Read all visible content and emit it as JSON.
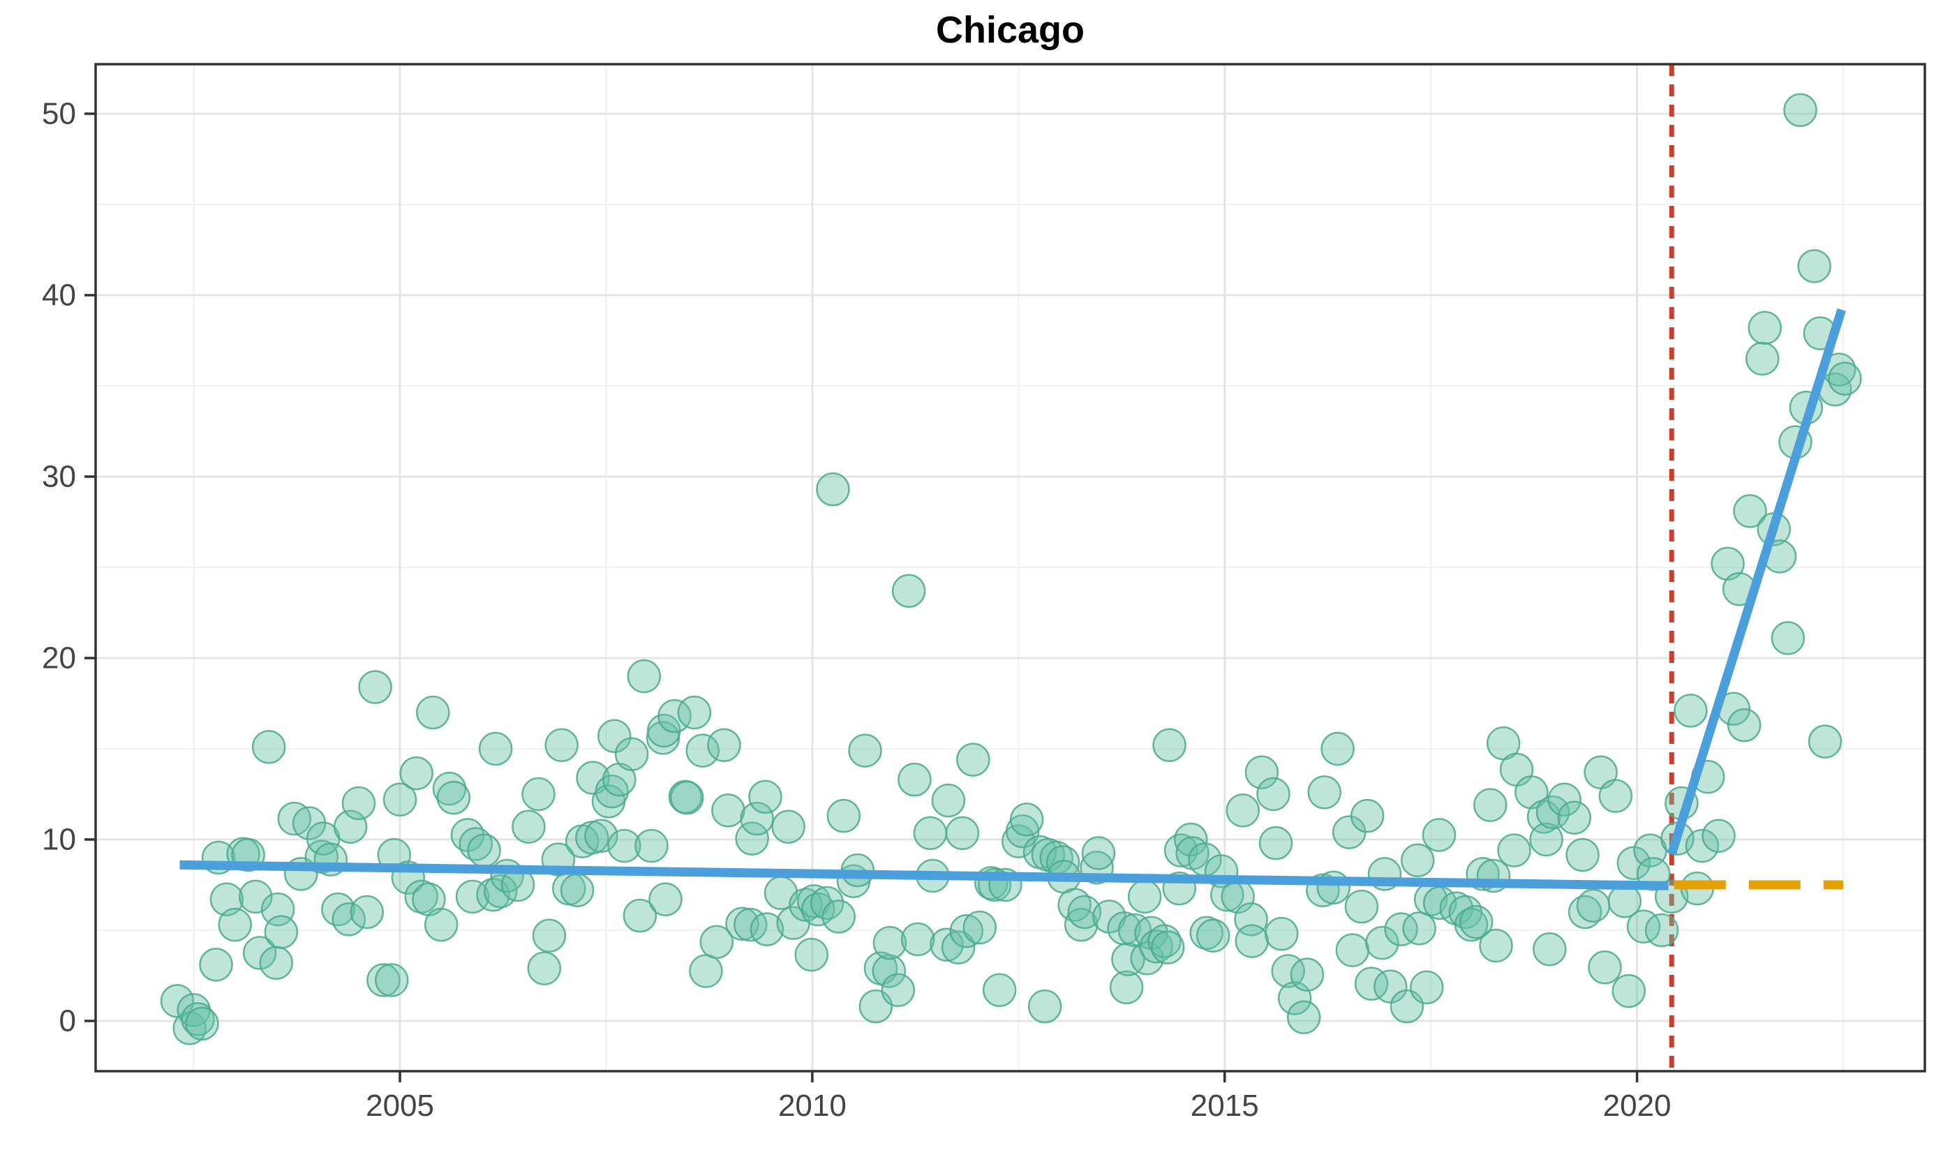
{
  "header": {
    "title": "Chicago"
  },
  "chart_data": {
    "type": "scatter",
    "title": "Chicago",
    "xlabel": "",
    "ylabel": "",
    "legend": "none",
    "grid": true,
    "xlim": [
      2001.31,
      2023.49
    ],
    "ylim": [
      -2.77,
      52.73
    ],
    "x_major_ticks": [
      2005,
      2010,
      2015,
      2020
    ],
    "x_minor_gridlines": [
      2002.5,
      2007.5,
      2012.5,
      2017.5,
      2022.5
    ],
    "y_major_ticks": [
      0,
      10,
      20,
      30,
      40,
      50
    ],
    "y_minor_gridlines": [
      5,
      15,
      25,
      35,
      45
    ],
    "colors": {
      "point_fill": "#66C2A5",
      "point_stroke": "#4BA98C",
      "trend": "#4BA0DB",
      "cutoff": "#C8402F",
      "counterfactual": "#E5A006",
      "grid_major": "#E3E3E3",
      "grid_minor": "#F1F1F1",
      "panel_border": "#333333",
      "tick_text": "#444444",
      "title_text": "#000000"
    },
    "pre_trend_line": {
      "x1": 2002.33,
      "y1": 8.6,
      "x2": 2020.38,
      "y2": 7.45
    },
    "post_trend_line": {
      "x1": 2020.42,
      "y1": 9.2,
      "x2": 2022.48,
      "y2": 39.2
    },
    "cutoff_line": {
      "x": 2020.42,
      "style": "dashed"
    },
    "counterfactual_line": {
      "y": 7.5,
      "x1": 2020.45,
      "x2": 2022.5,
      "style": "longdash"
    },
    "points": [
      [
        2002.3,
        1.1
      ],
      [
        2002.45,
        -0.4
      ],
      [
        2002.5,
        0.6
      ],
      [
        2002.55,
        0.1
      ],
      [
        2002.6,
        -0.15
      ],
      [
        2002.77,
        3.1
      ],
      [
        2002.8,
        9.0
      ],
      [
        2002.9,
        6.7
      ],
      [
        2003.0,
        5.3
      ],
      [
        2003.1,
        9.2
      ],
      [
        2003.16,
        9.15
      ],
      [
        2003.25,
        6.85
      ],
      [
        2003.3,
        3.75
      ],
      [
        2003.41,
        15.1
      ],
      [
        2003.5,
        3.2
      ],
      [
        2003.52,
        6.15
      ],
      [
        2003.56,
        4.9
      ],
      [
        2003.72,
        11.15
      ],
      [
        2003.8,
        8.1
      ],
      [
        2003.9,
        10.9
      ],
      [
        2004.05,
        9.05
      ],
      [
        2004.07,
        10.05
      ],
      [
        2004.16,
        8.9
      ],
      [
        2004.25,
        6.15
      ],
      [
        2004.38,
        5.6
      ],
      [
        2004.4,
        10.7
      ],
      [
        2004.5,
        12.0
      ],
      [
        2004.6,
        6.0
      ],
      [
        2004.7,
        18.4
      ],
      [
        2004.8,
        2.25
      ],
      [
        2004.9,
        2.25
      ],
      [
        2004.93,
        9.15
      ],
      [
        2005.0,
        12.2
      ],
      [
        2005.1,
        7.9
      ],
      [
        2005.2,
        13.65
      ],
      [
        2005.26,
        6.85
      ],
      [
        2005.35,
        6.7
      ],
      [
        2005.4,
        17.0
      ],
      [
        2005.5,
        5.3
      ],
      [
        2005.6,
        12.8
      ],
      [
        2005.65,
        12.3
      ],
      [
        2005.82,
        10.25
      ],
      [
        2005.88,
        6.85
      ],
      [
        2005.92,
        9.75
      ],
      [
        2006.02,
        9.4
      ],
      [
        2006.13,
        6.95
      ],
      [
        2006.16,
        15.0
      ],
      [
        2006.22,
        7.15
      ],
      [
        2006.3,
        8.0
      ],
      [
        2006.43,
        7.5
      ],
      [
        2006.56,
        10.7
      ],
      [
        2006.68,
        12.5
      ],
      [
        2006.75,
        2.9
      ],
      [
        2006.81,
        4.7
      ],
      [
        2006.92,
        8.9
      ],
      [
        2006.96,
        15.2
      ],
      [
        2007.05,
        7.3
      ],
      [
        2007.15,
        7.2
      ],
      [
        2007.21,
        9.9
      ],
      [
        2007.33,
        10.1
      ],
      [
        2007.34,
        13.4
      ],
      [
        2007.44,
        10.2
      ],
      [
        2007.53,
        12.1
      ],
      [
        2007.57,
        12.65
      ],
      [
        2007.6,
        15.7
      ],
      [
        2007.66,
        13.3
      ],
      [
        2007.72,
        9.65
      ],
      [
        2007.81,
        14.7
      ],
      [
        2007.91,
        5.8
      ],
      [
        2007.96,
        19.0
      ],
      [
        2008.05,
        9.65
      ],
      [
        2008.19,
        15.6
      ],
      [
        2008.2,
        16.0
      ],
      [
        2008.22,
        6.7
      ],
      [
        2008.33,
        16.8
      ],
      [
        2008.46,
        12.35
      ],
      [
        2008.48,
        12.3
      ],
      [
        2008.57,
        17.0
      ],
      [
        2008.67,
        14.9
      ],
      [
        2008.71,
        2.75
      ],
      [
        2008.84,
        4.35
      ],
      [
        2008.93,
        15.2
      ],
      [
        2008.98,
        11.6
      ],
      [
        2009.15,
        5.35
      ],
      [
        2009.25,
        5.3
      ],
      [
        2009.27,
        10.05
      ],
      [
        2009.33,
        11.15
      ],
      [
        2009.43,
        12.35
      ],
      [
        2009.45,
        5.05
      ],
      [
        2009.62,
        7.05
      ],
      [
        2009.71,
        10.7
      ],
      [
        2009.77,
        5.4
      ],
      [
        2009.92,
        6.4
      ],
      [
        2009.99,
        3.65
      ],
      [
        2010.02,
        6.6
      ],
      [
        2010.07,
        6.15
      ],
      [
        2010.18,
        6.5
      ],
      [
        2010.25,
        29.3
      ],
      [
        2010.32,
        5.75
      ],
      [
        2010.38,
        11.3
      ],
      [
        2010.5,
        7.7
      ],
      [
        2010.55,
        8.3
      ],
      [
        2010.64,
        14.9
      ],
      [
        2010.77,
        0.8
      ],
      [
        2010.83,
        2.9
      ],
      [
        2010.93,
        2.75
      ],
      [
        2010.94,
        4.3
      ],
      [
        2011.04,
        1.7
      ],
      [
        2011.17,
        23.7
      ],
      [
        2011.24,
        13.3
      ],
      [
        2011.28,
        4.5
      ],
      [
        2011.43,
        10.35
      ],
      [
        2011.46,
        8.0
      ],
      [
        2011.63,
        4.2
      ],
      [
        2011.65,
        12.15
      ],
      [
        2011.77,
        4.05
      ],
      [
        2011.82,
        10.35
      ],
      [
        2011.87,
        4.95
      ],
      [
        2011.95,
        14.4
      ],
      [
        2012.03,
        5.15
      ],
      [
        2012.17,
        7.6
      ],
      [
        2012.21,
        7.5
      ],
      [
        2012.27,
        1.7
      ],
      [
        2012.34,
        7.5
      ],
      [
        2012.5,
        9.9
      ],
      [
        2012.55,
        10.45
      ],
      [
        2012.6,
        11.1
      ],
      [
        2012.76,
        9.3
      ],
      [
        2012.82,
        0.8
      ],
      [
        2012.86,
        9.15
      ],
      [
        2012.96,
        9.0
      ],
      [
        2013.04,
        8.75
      ],
      [
        2013.05,
        7.95
      ],
      [
        2013.18,
        6.4
      ],
      [
        2013.26,
        5.3
      ],
      [
        2013.3,
        6.0
      ],
      [
        2013.45,
        8.45
      ],
      [
        2013.47,
        9.25
      ],
      [
        2013.6,
        5.75
      ],
      [
        2013.78,
        5.1
      ],
      [
        2013.81,
        1.85
      ],
      [
        2013.83,
        3.4
      ],
      [
        2013.91,
        5.0
      ],
      [
        2014.03,
        6.85
      ],
      [
        2014.06,
        3.45
      ],
      [
        2014.11,
        4.85
      ],
      [
        2014.17,
        4.1
      ],
      [
        2014.27,
        4.4
      ],
      [
        2014.31,
        4.05
      ],
      [
        2014.33,
        15.2
      ],
      [
        2014.45,
        7.3
      ],
      [
        2014.47,
        9.4
      ],
      [
        2014.59,
        10.0
      ],
      [
        2014.61,
        9.25
      ],
      [
        2014.76,
        8.9
      ],
      [
        2014.78,
        4.85
      ],
      [
        2014.86,
        4.7
      ],
      [
        2014.96,
        8.25
      ],
      [
        2015.03,
        6.95
      ],
      [
        2015.16,
        6.85
      ],
      [
        2015.22,
        11.6
      ],
      [
        2015.32,
        5.6
      ],
      [
        2015.33,
        4.4
      ],
      [
        2015.45,
        13.7
      ],
      [
        2015.59,
        12.5
      ],
      [
        2015.62,
        9.8
      ],
      [
        2015.69,
        4.8
      ],
      [
        2015.77,
        2.75
      ],
      [
        2015.85,
        1.25
      ],
      [
        2015.96,
        0.2
      ],
      [
        2016.0,
        2.55
      ],
      [
        2016.19,
        7.2
      ],
      [
        2016.21,
        12.6
      ],
      [
        2016.32,
        7.35
      ],
      [
        2016.37,
        15.0
      ],
      [
        2016.51,
        10.4
      ],
      [
        2016.55,
        3.9
      ],
      [
        2016.66,
        6.3
      ],
      [
        2016.73,
        11.3
      ],
      [
        2016.78,
        2.05
      ],
      [
        2016.91,
        4.3
      ],
      [
        2016.94,
        8.1
      ],
      [
        2017.01,
        1.9
      ],
      [
        2017.14,
        5.05
      ],
      [
        2017.21,
        0.8
      ],
      [
        2017.34,
        8.85
      ],
      [
        2017.36,
        5.1
      ],
      [
        2017.45,
        1.85
      ],
      [
        2017.5,
        6.7
      ],
      [
        2017.6,
        10.25
      ],
      [
        2017.61,
        6.5
      ],
      [
        2017.81,
        6.2
      ],
      [
        2017.92,
        6.0
      ],
      [
        2017.99,
        5.3
      ],
      [
        2018.05,
        5.45
      ],
      [
        2018.13,
        8.1
      ],
      [
        2018.22,
        11.9
      ],
      [
        2018.26,
        8.0
      ],
      [
        2018.29,
        4.15
      ],
      [
        2018.38,
        15.3
      ],
      [
        2018.51,
        9.4
      ],
      [
        2018.54,
        13.85
      ],
      [
        2018.72,
        12.6
      ],
      [
        2018.87,
        11.25
      ],
      [
        2018.9,
        10.0
      ],
      [
        2018.94,
        3.95
      ],
      [
        2018.98,
        11.5
      ],
      [
        2019.12,
        12.2
      ],
      [
        2019.24,
        11.2
      ],
      [
        2019.34,
        9.15
      ],
      [
        2019.37,
        6.0
      ],
      [
        2019.47,
        6.35
      ],
      [
        2019.56,
        13.7
      ],
      [
        2019.61,
        2.95
      ],
      [
        2019.74,
        12.4
      ],
      [
        2019.85,
        6.6
      ],
      [
        2019.9,
        1.65
      ],
      [
        2019.96,
        8.7
      ],
      [
        2020.08,
        5.2
      ],
      [
        2020.16,
        9.4
      ],
      [
        2020.2,
        8.1
      ],
      [
        2020.3,
        5.0
      ],
      [
        2020.42,
        6.85
      ],
      [
        2020.49,
        10.05
      ],
      [
        2020.54,
        12.0
      ],
      [
        2020.65,
        17.1
      ],
      [
        2020.73,
        7.3
      ],
      [
        2020.79,
        9.65
      ],
      [
        2020.86,
        13.45
      ],
      [
        2020.99,
        10.2
      ],
      [
        2021.1,
        25.2
      ],
      [
        2021.17,
        17.2
      ],
      [
        2021.24,
        23.8
      ],
      [
        2021.3,
        16.3
      ],
      [
        2021.37,
        28.1
      ],
      [
        2021.52,
        36.5
      ],
      [
        2021.55,
        38.2
      ],
      [
        2021.66,
        27.1
      ],
      [
        2021.73,
        25.6
      ],
      [
        2021.83,
        21.1
      ],
      [
        2021.92,
        31.9
      ],
      [
        2021.98,
        50.2
      ],
      [
        2022.05,
        33.8
      ],
      [
        2022.15,
        41.6
      ],
      [
        2022.22,
        37.9
      ],
      [
        2022.28,
        15.4
      ],
      [
        2022.4,
        34.8
      ],
      [
        2022.45,
        35.9
      ],
      [
        2022.52,
        35.4
      ]
    ]
  }
}
